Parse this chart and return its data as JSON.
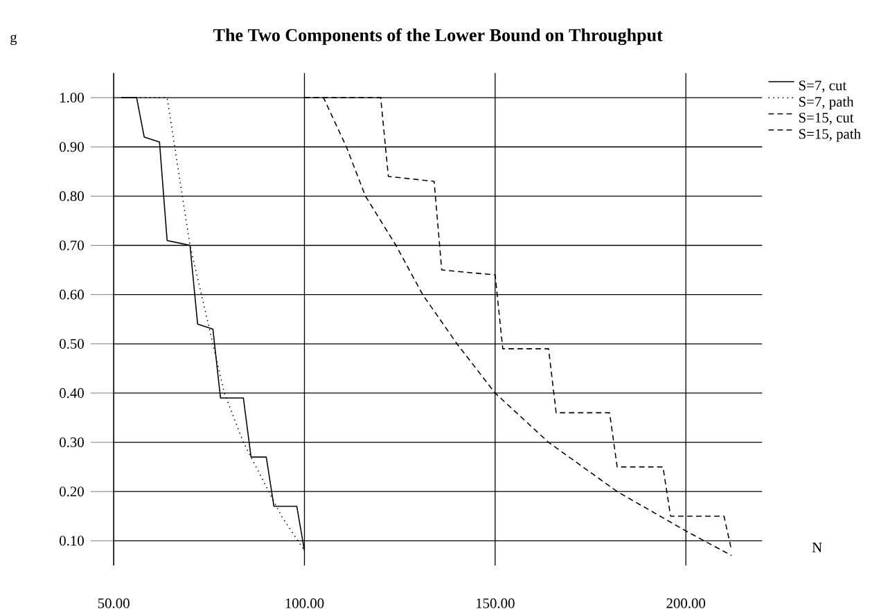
{
  "chart_data": {
    "type": "line",
    "title": "The Two Components of the Lower Bound on Throughput",
    "xlabel": "N",
    "ylabel": "g",
    "xlim": [
      50,
      220
    ],
    "ylim": [
      0.05,
      1.05
    ],
    "xticks": [
      {
        "value": 50,
        "label": "50.00"
      },
      {
        "value": 100,
        "label": "100.00"
      },
      {
        "value": 150,
        "label": "150.00"
      },
      {
        "value": 200,
        "label": "200.00"
      }
    ],
    "yticks": [
      {
        "value": 0.1,
        "label": "0.10"
      },
      {
        "value": 0.2,
        "label": "0.20"
      },
      {
        "value": 0.3,
        "label": "0.30"
      },
      {
        "value": 0.4,
        "label": "0.40"
      },
      {
        "value": 0.5,
        "label": "0.50"
      },
      {
        "value": 0.6,
        "label": "0.60"
      },
      {
        "value": 0.7,
        "label": "0.70"
      },
      {
        "value": 0.8,
        "label": "0.80"
      },
      {
        "value": 0.9,
        "label": "0.90"
      },
      {
        "value": 1.0,
        "label": "1.00"
      }
    ],
    "grid": true,
    "legend": "top right",
    "marker": "none",
    "series": [
      {
        "name": "S=7, cut",
        "color": "#000000",
        "line_style": "solid",
        "x": [
          52,
          56,
          58,
          62,
          64,
          70,
          72,
          76,
          78,
          84,
          86,
          90,
          92,
          98,
          100
        ],
        "values": [
          1.0,
          1.0,
          0.92,
          0.91,
          0.71,
          0.7,
          0.54,
          0.53,
          0.39,
          0.39,
          0.27,
          0.27,
          0.17,
          0.17,
          0.08
        ]
      },
      {
        "name": "S=7, path",
        "color": "#000000",
        "line_style": "dotted",
        "x": [
          52,
          64,
          68,
          70,
          73,
          76,
          79,
          84,
          90,
          94,
          100
        ],
        "values": [
          1.0,
          1.0,
          0.8,
          0.7,
          0.6,
          0.5,
          0.4,
          0.3,
          0.21,
          0.15,
          0.08
        ]
      },
      {
        "name": "S=15, cut",
        "color": "#000000",
        "line_style": "dashed",
        "x": [
          100,
          120,
          122,
          134,
          136,
          150,
          152,
          164,
          166,
          180,
          182,
          194,
          196,
          210,
          212
        ],
        "values": [
          1.0,
          1.0,
          0.84,
          0.83,
          0.65,
          0.64,
          0.49,
          0.49,
          0.36,
          0.36,
          0.25,
          0.25,
          0.15,
          0.15,
          0.08
        ]
      },
      {
        "name": "S=15, path",
        "color": "#000000",
        "line_style": "dashed",
        "x": [
          100,
          105,
          111,
          116,
          124,
          131,
          140,
          150,
          164,
          182,
          200,
          212
        ],
        "values": [
          1.0,
          1.0,
          0.9,
          0.8,
          0.7,
          0.6,
          0.5,
          0.4,
          0.3,
          0.2,
          0.12,
          0.07
        ]
      }
    ]
  }
}
